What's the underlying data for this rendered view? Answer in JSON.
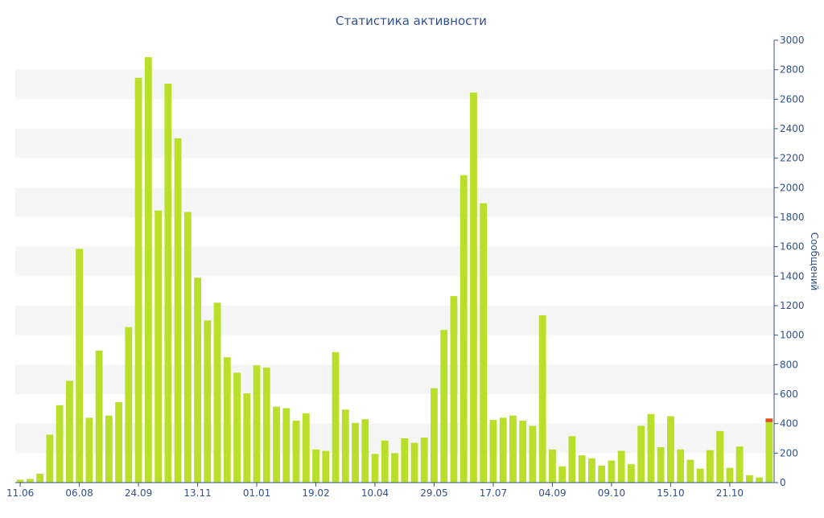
{
  "chart_data": {
    "type": "bar",
    "title": "Статистика активности",
    "ylabel": "Сообщений",
    "xlabel": "",
    "ylim": [
      0,
      3000
    ],
    "y_ticks": [
      0,
      200,
      400,
      600,
      800,
      1000,
      1200,
      1400,
      1600,
      1800,
      2000,
      2200,
      2400,
      2600,
      2800,
      3000
    ],
    "y_axis_side": "right",
    "grid": "alternating horizontal bands",
    "x_tick_labels": [
      "11.06",
      "06.08",
      "24.09",
      "13.11",
      "01.01",
      "19.02",
      "10.04",
      "29.05",
      "17.07",
      "04.09",
      "09.10",
      "15.10",
      "21.10"
    ],
    "x_tick_positions": [
      0,
      6,
      12,
      18,
      24,
      30,
      36,
      42,
      48,
      54,
      60,
      66,
      72
    ],
    "series": [
      {
        "color": "#b8e02a",
        "values": [
          20,
          25,
          60,
          325,
          525,
          690,
          1585,
          440,
          895,
          455,
          545,
          1055,
          2745,
          2885,
          1845,
          2705,
          2335,
          1835,
          1390,
          1100,
          1220,
          850,
          745,
          605,
          795,
          780,
          515,
          505,
          420,
          470,
          225,
          215,
          885,
          495,
          405,
          430,
          195,
          285,
          200,
          300,
          270,
          305,
          640,
          1035,
          1265,
          2085,
          2645,
          1895,
          425,
          440,
          455,
          420,
          385,
          1135,
          225,
          110,
          315,
          185,
          165,
          115,
          150,
          215,
          125,
          385,
          465,
          240,
          450,
          225,
          155,
          95,
          220,
          350,
          100,
          245,
          50,
          35,
          410
        ]
      }
    ],
    "highlight": {
      "color": "#e05020",
      "value": 25
    }
  }
}
